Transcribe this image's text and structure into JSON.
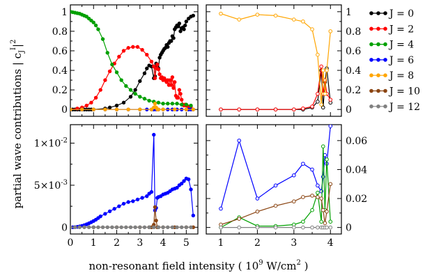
{
  "chart_data": [
    {
      "type": "line",
      "panel": "top-left",
      "xlim": [
        0,
        5.5
      ],
      "ylim": [
        -0.07,
        1.07
      ],
      "x_ticks": [
        0,
        1,
        2,
        3,
        4,
        5
      ],
      "y_ticks": [
        0,
        0.2,
        0.4,
        0.6,
        0.8,
        1
      ],
      "y_tick_labels": [
        "0",
        "0.2",
        "0.4",
        "0.6",
        "0.8",
        "1"
      ],
      "y_axis_side": "left",
      "series": [
        {
          "name": "J = 0",
          "color": "#000000",
          "marker": "filled",
          "x": [
            0,
            0.1,
            0.2,
            0.3,
            0.4,
            0.5,
            0.6,
            0.7,
            0.8,
            0.9,
            1,
            1.5,
            1.7,
            2,
            2.3,
            2.6,
            2.8,
            3,
            3.2,
            3.3,
            3.4,
            3.5,
            3.6,
            3.65,
            3.7,
            3.75,
            3.8,
            3.85,
            3.9,
            3.95,
            4,
            4.05,
            4.1,
            4.15,
            4.2,
            4.25,
            4.3,
            4.35,
            4.4,
            4.45,
            4.5,
            4.55,
            4.6,
            4.65,
            4.7,
            4.75,
            4.8,
            4.85,
            4.9,
            4.95,
            5,
            5.1,
            5.2,
            5.3
          ],
          "y": [
            0,
            0,
            0,
            0,
            0,
            0,
            0,
            0,
            0,
            0,
            0,
            0.01,
            0.02,
            0.04,
            0.07,
            0.13,
            0.2,
            0.29,
            0.37,
            0.42,
            0.45,
            0.44,
            0.32,
            0.34,
            0.47,
            0.44,
            0.42,
            0.53,
            0.56,
            0.58,
            0.6,
            0.62,
            0.63,
            0.66,
            0.64,
            0.68,
            0.7,
            0.7,
            0.75,
            0.73,
            0.82,
            0.84,
            0.86,
            0.85,
            0.88,
            0.8,
            0.83,
            0.84,
            0.82,
            0.86,
            0.9,
            0.93,
            0.95,
            0.96
          ]
        },
        {
          "name": "J = 2",
          "color": "#ff0000",
          "marker": "filled",
          "x": [
            0,
            0.3,
            0.5,
            0.7,
            0.9,
            1.1,
            1.3,
            1.5,
            1.7,
            1.9,
            2.1,
            2.3,
            2.5,
            2.7,
            2.9,
            3.1,
            3.3,
            3.5,
            3.6,
            3.65,
            3.7,
            3.75,
            3.8,
            3.85,
            3.9,
            3.95,
            4,
            4.05,
            4.1,
            4.15,
            4.2,
            4.25,
            4.3,
            4.35,
            4.4,
            4.45,
            4.5,
            4.55,
            4.6,
            4.65,
            4.7,
            4.75,
            4.8,
            4.85,
            4.9,
            4.95,
            5,
            5.1,
            5.2
          ],
          "y": [
            0,
            0.01,
            0.02,
            0.04,
            0.07,
            0.12,
            0.2,
            0.3,
            0.39,
            0.47,
            0.54,
            0.6,
            0.63,
            0.64,
            0.64,
            0.61,
            0.56,
            0.49,
            0.44,
            0.32,
            0.42,
            0.46,
            0.41,
            0.36,
            0.32,
            0.33,
            0.3,
            0.32,
            0.3,
            0.28,
            0.3,
            0.25,
            0.3,
            0.25,
            0.33,
            0.22,
            0.28,
            0.14,
            0.12,
            0.12,
            0.2,
            0.16,
            0.1,
            0.05,
            0.04,
            0.05,
            0.04,
            0.03,
            0.03
          ]
        },
        {
          "name": "J = 4",
          "color": "#00a000",
          "marker": "filled",
          "x": [
            0,
            0.1,
            0.2,
            0.3,
            0.4,
            0.5,
            0.6,
            0.7,
            0.8,
            0.9,
            1,
            1.1,
            1.2,
            1.4,
            1.6,
            1.8,
            2,
            2.2,
            2.4,
            2.6,
            2.8,
            3,
            3.2,
            3.4,
            3.6,
            3.8,
            4,
            4.2,
            4.4,
            4.6,
            4.8,
            5,
            5.2
          ],
          "y": [
            1,
            0.995,
            0.99,
            0.985,
            0.98,
            0.97,
            0.96,
            0.95,
            0.93,
            0.91,
            0.89,
            0.86,
            0.82,
            0.72,
            0.58,
            0.46,
            0.38,
            0.3,
            0.24,
            0.2,
            0.16,
            0.13,
            0.11,
            0.09,
            0.08,
            0.07,
            0.06,
            0.06,
            0.06,
            0.06,
            0.05,
            0.05,
            0.04
          ]
        },
        {
          "name": "J = 6",
          "color": "#0000ff",
          "marker": "filled",
          "x": [
            0,
            0.5,
            1,
            1.5,
            2,
            2.5,
            3,
            3.3,
            3.5,
            3.6,
            3.65,
            3.7,
            3.8,
            4,
            4.2,
            4.4,
            4.6,
            4.8,
            5,
            5.1,
            5.2,
            5.3
          ],
          "y": [
            0,
            0,
            0,
            0,
            0,
            0,
            0,
            0,
            0,
            0,
            0.01,
            0,
            0,
            0,
            0,
            0,
            0,
            0,
            0,
            0,
            0,
            0
          ]
        },
        {
          "name": "J = 8",
          "color": "#ffa500",
          "marker": "filled",
          "x": [
            0,
            0.5,
            1,
            1.5,
            2,
            2.5,
            3,
            3.5,
            3.6,
            3.65,
            3.7,
            3.75,
            3.8,
            4,
            4.5,
            5,
            5.3
          ],
          "y": [
            0,
            0,
            0,
            0,
            0,
            0,
            0,
            0,
            0.02,
            0.06,
            0.02,
            0,
            0,
            0,
            0,
            0,
            0
          ]
        }
      ]
    },
    {
      "type": "line",
      "panel": "top-right",
      "xlim": [
        0.6,
        4.3
      ],
      "ylim": [
        -0.07,
        1.07
      ],
      "x_ticks": [
        1,
        2,
        3,
        4
      ],
      "y_ticks": [
        0,
        0.2,
        0.4,
        0.6,
        0.8,
        1
      ],
      "y_tick_labels": [
        "0",
        "0.2",
        "0.4",
        "0.6",
        "0.8",
        "1"
      ],
      "y_axis_side": "right",
      "series": [
        {
          "name": "J = 0",
          "color": "#000000",
          "marker": "open",
          "x": [
            1,
            1.5,
            2,
            2.5,
            3,
            3.25,
            3.5,
            3.65,
            3.75,
            3.8,
            3.85,
            3.9,
            4
          ],
          "y": [
            0,
            0,
            0,
            0,
            0,
            0,
            0.02,
            0.08,
            0.4,
            0.02,
            0.28,
            0.42,
            0.07
          ]
        },
        {
          "name": "J = 2",
          "color": "#ff0000",
          "marker": "open",
          "x": [
            1,
            1.5,
            2,
            2.5,
            3,
            3.25,
            3.5,
            3.65,
            3.75,
            3.8,
            3.85,
            3.9,
            4
          ],
          "y": [
            0,
            0,
            0,
            0,
            0,
            0.01,
            0.03,
            0.16,
            0.44,
            0.16,
            0.3,
            0.16,
            0.1
          ]
        },
        {
          "name": "J = 8",
          "color": "#ffa500",
          "marker": "open",
          "x": [
            1,
            1.5,
            2,
            2.5,
            3,
            3.25,
            3.5,
            3.65,
            3.75,
            3.8,
            3.85,
            3.9,
            4
          ],
          "y": [
            0.98,
            0.92,
            0.97,
            0.96,
            0.92,
            0.9,
            0.82,
            0.56,
            0.05,
            0.4,
            0.16,
            0.4,
            0.8
          ]
        }
      ]
    },
    {
      "type": "line",
      "panel": "bottom-left",
      "xlim": [
        0,
        5.5
      ],
      "ylim": [
        -0.0008,
        0.0122
      ],
      "x_ticks": [
        0,
        1,
        2,
        3,
        4,
        5
      ],
      "x_tick_labels": [
        "0",
        "1",
        "2",
        "3",
        "4",
        "5"
      ],
      "y_ticks": [
        0,
        0.005,
        0.01
      ],
      "y_tick_labels": [
        "0",
        "5×10-3",
        "1×10-2"
      ],
      "y_axis_side": "left",
      "series": [
        {
          "name": "J = 6",
          "color": "#0000ff",
          "marker": "filled",
          "x": [
            0,
            0.1,
            0.2,
            0.3,
            0.4,
            0.5,
            0.6,
            0.7,
            0.8,
            0.9,
            1,
            1.1,
            1.2,
            1.3,
            1.5,
            1.7,
            1.9,
            2.1,
            2.3,
            2.5,
            2.7,
            2.9,
            3.1,
            3.3,
            3.4,
            3.5,
            3.6,
            3.65,
            3.7,
            3.75,
            3.8,
            3.9,
            4,
            4.1,
            4.2,
            4.3,
            4.4,
            4.5,
            4.6,
            4.7,
            4.8,
            4.9,
            5,
            5.1,
            5.2,
            5.3
          ],
          "y": [
            0,
            0,
            2e-05,
            5e-05,
            0.0001,
            0.00017,
            0.00025,
            0.00035,
            0.00047,
            0.0006,
            0.00075,
            0.0009,
            0.0011,
            0.0013,
            0.0016,
            0.0019,
            0.0022,
            0.0025,
            0.0028,
            0.003,
            0.0031,
            0.0033,
            0.0035,
            0.0037,
            0.004,
            0.0042,
            0.011,
            0.002,
            0.0023,
            0.0035,
            0.0036,
            0.0037,
            0.0039,
            0.004,
            0.0041,
            0.0043,
            0.0045,
            0.0046,
            0.0047,
            0.005,
            0.0052,
            0.0055,
            0.0058,
            0.0057,
            0.0045,
            0.0014
          ]
        },
        {
          "name": "J = 10",
          "color": "#8b4513",
          "marker": "filled",
          "x": [
            0,
            1,
            2,
            3,
            3.4,
            3.5,
            3.6,
            3.65,
            3.7,
            3.75,
            3.8,
            4,
            4.5,
            5,
            5.3
          ],
          "y": [
            0,
            0,
            0,
            0,
            0,
            0,
            0.0003,
            0.0024,
            0.0008,
            0,
            0,
            0,
            0,
            0,
            0
          ]
        },
        {
          "name": "J = 12",
          "color": "#808080",
          "marker": "filled",
          "x": [
            0,
            0.2,
            0.4,
            0.6,
            0.8,
            1,
            1.2,
            1.4,
            1.6,
            1.8,
            2,
            2.2,
            2.4,
            2.6,
            2.8,
            3,
            3.2,
            3.4,
            3.6,
            3.8,
            4,
            4.2,
            4.4,
            4.6,
            4.8,
            5,
            5.2
          ],
          "y": [
            0,
            0,
            0,
            0,
            0,
            0,
            0,
            0,
            0,
            0,
            0,
            0,
            0,
            0,
            0,
            0,
            0,
            0,
            0,
            0,
            0,
            0,
            0,
            0,
            0,
            0,
            0
          ]
        }
      ]
    },
    {
      "type": "line",
      "panel": "bottom-right",
      "xlim": [
        0.6,
        4.3
      ],
      "ylim": [
        -0.0045,
        0.071
      ],
      "x_ticks": [
        1,
        2,
        3,
        4
      ],
      "x_tick_labels": [
        "1",
        "2",
        "3",
        "4"
      ],
      "y_ticks": [
        0,
        0.02,
        0.04,
        0.06
      ],
      "y_tick_labels": [
        "0",
        "0.02",
        "0.04",
        "0.06"
      ],
      "y_axis_side": "right",
      "series": [
        {
          "name": "J = 6",
          "color": "#0000ff",
          "marker": "open",
          "x": [
            1,
            1.5,
            2,
            2.5,
            3,
            3.25,
            3.5,
            3.65,
            3.75,
            3.8,
            3.85,
            3.9,
            4
          ],
          "y": [
            0.013,
            0.06,
            0.02,
            0.029,
            0.036,
            0.044,
            0.04,
            0.029,
            0.025,
            0.035,
            0.05,
            0.044,
            0.07
          ]
        },
        {
          "name": "J = 4",
          "color": "#00a000",
          "marker": "open",
          "x": [
            1,
            1.5,
            2,
            2.5,
            3,
            3.25,
            3.5,
            3.65,
            3.75,
            3.8,
            3.85,
            3.9,
            4
          ],
          "y": [
            0,
            0.007,
            0.001,
            0.001,
            0.002,
            0.004,
            0.012,
            0.024,
            0.004,
            0.056,
            0.012,
            0.047,
            0.004
          ]
        },
        {
          "name": "J = 10",
          "color": "#8b4513",
          "marker": "open",
          "x": [
            1,
            1.5,
            2,
            2.5,
            3,
            3.25,
            3.5,
            3.65,
            3.75,
            3.8,
            3.85,
            3.9,
            4
          ],
          "y": [
            0.002,
            0.006,
            0.011,
            0.015,
            0.018,
            0.021,
            0.022,
            0.021,
            0.02,
            0.012,
            0.003,
            0.011,
            0.03
          ]
        },
        {
          "name": "J = 12",
          "color": "#808080",
          "marker": "open",
          "x": [
            1,
            1.5,
            2,
            2.5,
            3,
            3.25,
            3.5,
            3.65,
            3.75,
            3.8,
            3.85,
            3.9,
            4
          ],
          "y": [
            0,
            0,
            0,
            0,
            0,
            0,
            0,
            0,
            0,
            0,
            0,
            0,
            0
          ]
        }
      ]
    }
  ],
  "xlabel": {
    "main": "non-resonant field intensity ( 10",
    "sup": "9",
    "mid": " W/cm",
    "sup2": "2",
    "end": " )"
  },
  "ylabel": "partial wave contributions  | c",
  "ylabel_sub": "J",
  "ylabel_sup1": "I",
  "ylabel_sup2": "2",
  "legend": [
    {
      "label": "J = 0",
      "color": "#000000"
    },
    {
      "label": "J = 2",
      "color": "#ff0000"
    },
    {
      "label": "J = 4",
      "color": "#00a000"
    },
    {
      "label": "J = 6",
      "color": "#0000ff"
    },
    {
      "label": "J = 8",
      "color": "#ffa500"
    },
    {
      "label": "J = 10",
      "color": "#8b4513"
    },
    {
      "label": "J = 12",
      "color": "#808080"
    }
  ]
}
